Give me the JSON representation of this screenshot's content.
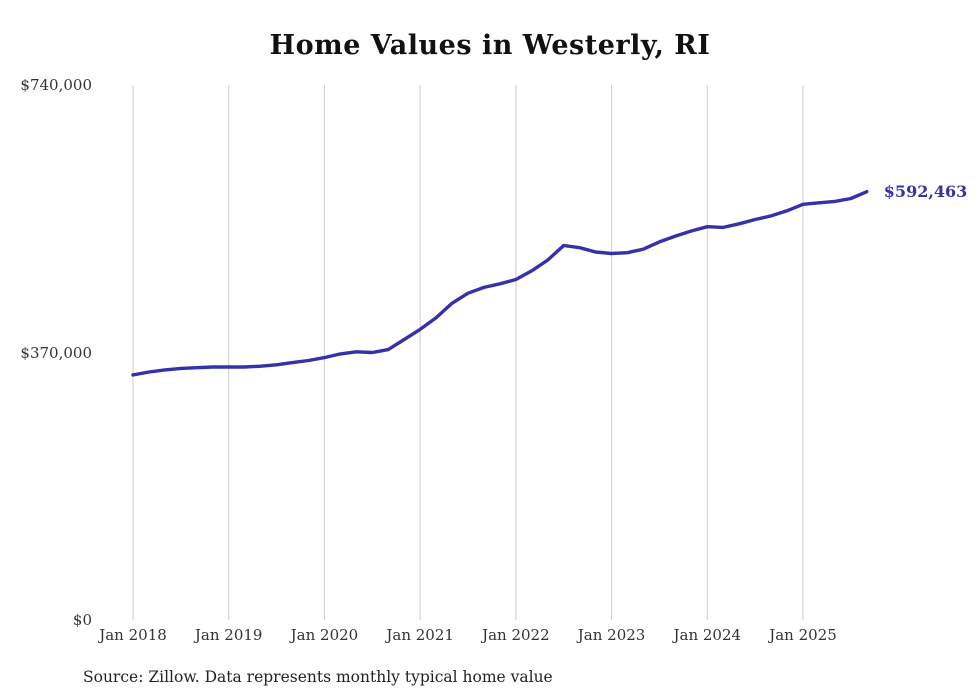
{
  "chart_data": {
    "type": "line",
    "title": "Home Values in Westerly, RI",
    "source_note": "Source: Zillow. Data represents monthly typical home value",
    "end_label": "$592,463",
    "latest_value": 592463,
    "colors": {
      "line": "#3531a8",
      "gridline": "#cccccc",
      "text": "#333333",
      "title": "#111111"
    },
    "y_axis": {
      "min": 0,
      "max": 740000,
      "ticks": [
        {
          "label": "$740,000",
          "value": 740000
        },
        {
          "label": "$370,000",
          "value": 370000
        },
        {
          "label": "$0",
          "value": 0
        }
      ]
    },
    "x_axis": {
      "ticks": [
        {
          "label": "Jan 2018",
          "month_index": 0
        },
        {
          "label": "Jan 2019",
          "month_index": 12
        },
        {
          "label": "Jan 2020",
          "month_index": 24
        },
        {
          "label": "Jan 2021",
          "month_index": 36
        },
        {
          "label": "Jan 2022",
          "month_index": 48
        },
        {
          "label": "Jan 2023",
          "month_index": 60
        },
        {
          "label": "Jan 2024",
          "month_index": 72
        },
        {
          "label": "Jan 2025",
          "month_index": 84
        }
      ]
    },
    "series": [
      {
        "name": "Typical home value",
        "points": [
          {
            "date": "2018-01",
            "value": 339000
          },
          {
            "date": "2018-03",
            "value": 343000
          },
          {
            "date": "2018-05",
            "value": 346000
          },
          {
            "date": "2018-07",
            "value": 348000
          },
          {
            "date": "2018-09",
            "value": 349000
          },
          {
            "date": "2018-11",
            "value": 350000
          },
          {
            "date": "2019-01",
            "value": 350000
          },
          {
            "date": "2019-03",
            "value": 350000
          },
          {
            "date": "2019-05",
            "value": 351000
          },
          {
            "date": "2019-07",
            "value": 353000
          },
          {
            "date": "2019-09",
            "value": 356000
          },
          {
            "date": "2019-11",
            "value": 359000
          },
          {
            "date": "2020-01",
            "value": 363000
          },
          {
            "date": "2020-03",
            "value": 368000
          },
          {
            "date": "2020-05",
            "value": 371000
          },
          {
            "date": "2020-07",
            "value": 370000
          },
          {
            "date": "2020-09",
            "value": 374000
          },
          {
            "date": "2020-11",
            "value": 388000
          },
          {
            "date": "2021-01",
            "value": 402000
          },
          {
            "date": "2021-03",
            "value": 418000
          },
          {
            "date": "2021-05",
            "value": 438000
          },
          {
            "date": "2021-07",
            "value": 452000
          },
          {
            "date": "2021-09",
            "value": 460000
          },
          {
            "date": "2021-11",
            "value": 465000
          },
          {
            "date": "2022-01",
            "value": 471000
          },
          {
            "date": "2022-03",
            "value": 483000
          },
          {
            "date": "2022-05",
            "value": 498000
          },
          {
            "date": "2022-07",
            "value": 518000
          },
          {
            "date": "2022-09",
            "value": 515000
          },
          {
            "date": "2022-11",
            "value": 509000
          },
          {
            "date": "2023-01",
            "value": 507000
          },
          {
            "date": "2023-03",
            "value": 508000
          },
          {
            "date": "2023-05",
            "value": 513000
          },
          {
            "date": "2023-07",
            "value": 523000
          },
          {
            "date": "2023-09",
            "value": 531000
          },
          {
            "date": "2023-11",
            "value": 538000
          },
          {
            "date": "2024-01",
            "value": 544000
          },
          {
            "date": "2024-03",
            "value": 543000
          },
          {
            "date": "2024-05",
            "value": 548000
          },
          {
            "date": "2024-07",
            "value": 554000
          },
          {
            "date": "2024-09",
            "value": 559000
          },
          {
            "date": "2024-11",
            "value": 566000
          },
          {
            "date": "2025-01",
            "value": 575000
          },
          {
            "date": "2025-03",
            "value": 577000
          },
          {
            "date": "2025-05",
            "value": 579000
          },
          {
            "date": "2025-07",
            "value": 583000
          },
          {
            "date": "2025-09",
            "value": 592463
          }
        ]
      }
    ]
  }
}
